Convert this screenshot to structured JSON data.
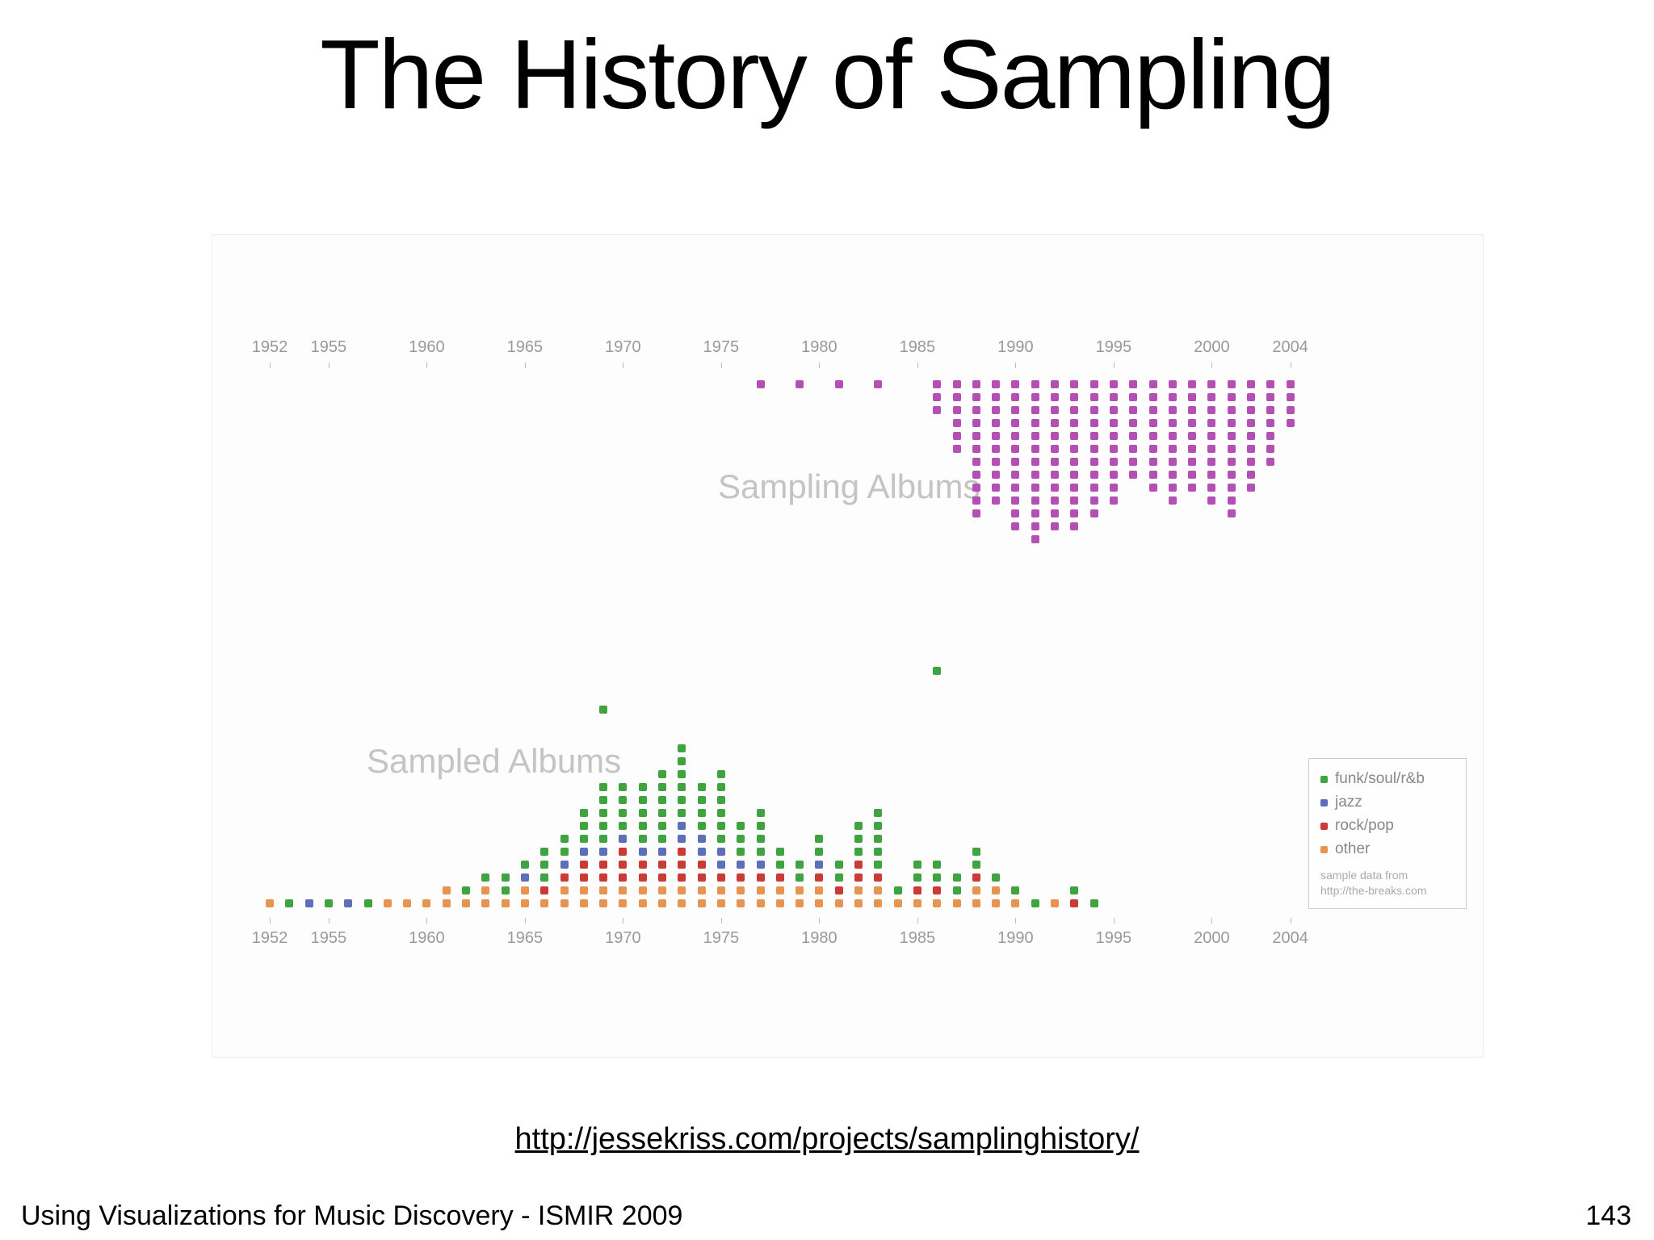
{
  "slide": {
    "title": "The History of Sampling",
    "link": "http://jessekriss.com/projects/samplinghistory/",
    "footer_left": "Using Visualizations for Music Discovery - ISMIR 2009",
    "page_number": "143"
  },
  "chart_data": {
    "type": "scatter",
    "title": "The History of Sampling",
    "xlabel": "",
    "ylabel": "",
    "axis": {
      "ticks": [
        1952,
        1955,
        1960,
        1965,
        1970,
        1975,
        1980,
        1985,
        1990,
        1995,
        2000,
        2004
      ],
      "min": 1952,
      "max": 2004,
      "grid": false
    },
    "colors": {
      "sampling": "#b351b3",
      "funk": "#3fa33f",
      "jazz": "#5e6fba",
      "rock": "#cc3a35",
      "other": "#e69550"
    },
    "sampling_albums": {
      "label": "Sampling Albums",
      "start_year": 1977,
      "values": [
        1,
        0,
        1,
        0,
        1,
        0,
        1,
        0,
        0,
        3,
        6,
        11,
        10,
        12,
        13,
        12,
        12,
        11,
        10,
        8,
        9,
        10,
        9,
        10,
        11,
        9,
        7,
        4
      ]
    },
    "sampled_albums": {
      "label": "Sampled Albums",
      "start_year": 1952,
      "stack_order": [
        "other",
        "rock",
        "jazz",
        "funk"
      ],
      "series": [
        {
          "name": "other",
          "values": [
            1,
            0,
            0,
            0,
            0,
            0,
            1,
            1,
            1,
            2,
            1,
            2,
            1,
            2,
            1,
            2,
            2,
            2,
            2,
            2,
            2,
            2,
            2,
            2,
            2,
            2,
            2,
            2,
            2,
            1,
            2,
            2,
            1,
            1,
            1,
            1,
            2,
            2,
            1,
            0,
            1,
            0,
            0
          ]
        },
        {
          "name": "rock",
          "values": [
            0,
            0,
            0,
            0,
            0,
            0,
            0,
            0,
            0,
            0,
            0,
            0,
            0,
            0,
            1,
            1,
            2,
            2,
            3,
            2,
            2,
            3,
            2,
            1,
            1,
            1,
            1,
            0,
            1,
            1,
            2,
            1,
            0,
            1,
            1,
            0,
            1,
            0,
            0,
            0,
            0,
            1,
            0
          ]
        },
        {
          "name": "jazz",
          "values": [
            0,
            0,
            1,
            0,
            1,
            0,
            0,
            0,
            0,
            0,
            0,
            0,
            0,
            1,
            0,
            1,
            1,
            1,
            1,
            1,
            1,
            2,
            2,
            2,
            1,
            1,
            0,
            0,
            1,
            0,
            0,
            0,
            0,
            0,
            0,
            0,
            0,
            0,
            0,
            0,
            0,
            0,
            0
          ]
        },
        {
          "name": "funk",
          "values": [
            0,
            1,
            0,
            1,
            0,
            1,
            0,
            0,
            0,
            0,
            1,
            1,
            2,
            1,
            3,
            2,
            3,
            5,
            4,
            5,
            6,
            6,
            4,
            6,
            3,
            4,
            2,
            2,
            2,
            2,
            3,
            5,
            1,
            2,
            2,
            2,
            2,
            1,
            1,
            1,
            0,
            1,
            1
          ]
        }
      ],
      "outliers": [
        {
          "year": 1969,
          "category": "funk",
          "stack_position": 15
        },
        {
          "year": 1986,
          "category": "funk",
          "stack_position": 18
        }
      ]
    },
    "legend": {
      "entries": [
        {
          "label": "funk/soul/r&b",
          "color_key": "funk"
        },
        {
          "label": "jazz",
          "color_key": "jazz"
        },
        {
          "label": "rock/pop",
          "color_key": "rock"
        },
        {
          "label": "other",
          "color_key": "other"
        }
      ],
      "note_line1": "sample data from",
      "note_line2": "http://the-breaks.com"
    }
  }
}
